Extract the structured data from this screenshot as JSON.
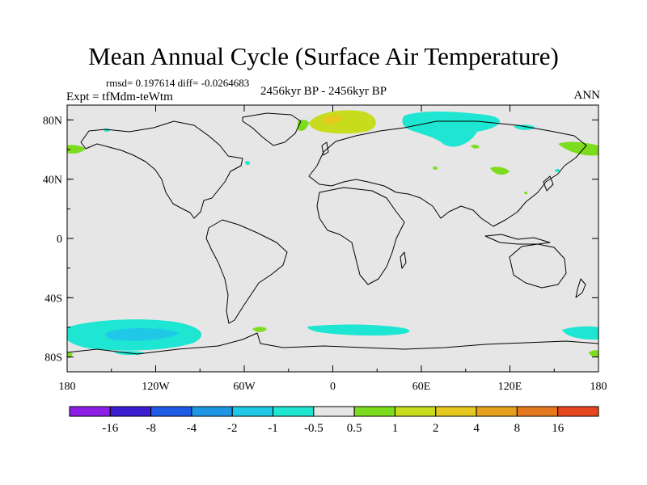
{
  "title": "Mean Annual Cycle (Surface Air Temperature)",
  "stats": "rmsd= 0.197614 diff= -0.0264683",
  "expt": "Expt = tfMdm-teWtm",
  "period": "2456kyr BP - 2456kyr BP",
  "season": "ANN",
  "lat_ticks": [
    {
      "label": "80N",
      "lat": 80
    },
    {
      "label": "40N",
      "lat": 40
    },
    {
      "label": "0",
      "lat": 0
    },
    {
      "label": "40S",
      "lat": -40
    },
    {
      "label": "80S",
      "lat": -80
    }
  ],
  "lon_ticks": [
    {
      "label": "180",
      "lon": -180
    },
    {
      "label": "120W",
      "lon": -120
    },
    {
      "label": "60W",
      "lon": -60
    },
    {
      "label": "0",
      "lon": 0
    },
    {
      "label": "60E",
      "lon": 60
    },
    {
      "label": "120E",
      "lon": 120
    },
    {
      "label": "180",
      "lon": 180
    }
  ],
  "colorbar": {
    "colors": [
      "#8c1ee6",
      "#3c1ed2",
      "#1e5ae6",
      "#1e96e6",
      "#1ec8e6",
      "#1ee6d2",
      "#e6e6e6",
      "#7ddc1e",
      "#c8dc1e",
      "#e6c81e",
      "#e6a01e",
      "#e6781e",
      "#e6461e"
    ],
    "labels": [
      "-16",
      "-8",
      "-4",
      "-2",
      "-1",
      "-0.5",
      "0.5",
      "1",
      "2",
      "4",
      "8",
      "16"
    ]
  },
  "colors": {
    "background": "#e6e6e6",
    "cool_light": "#1ee6d2",
    "cool_mid": "#1ec8e6",
    "warm_light": "#7ddc1e",
    "warm_mid": "#c8dc1e",
    "warm_high": "#e6c81e"
  }
}
